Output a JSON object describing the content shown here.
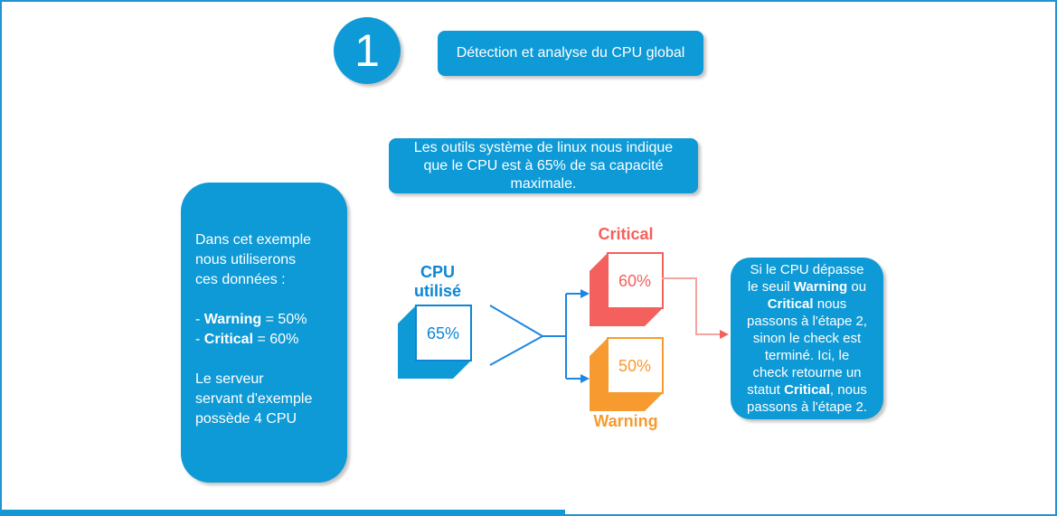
{
  "colors": {
    "blue": "#0e9ad6",
    "line-blue": "#1e87e0",
    "accent-blue": "#0c86d4",
    "critical": "#f4605d",
    "critical-light": "#f4a3a1",
    "warning": "#f79b30"
  },
  "step": {
    "number": "1",
    "title": "Détection et analyse du CPU global"
  },
  "info_box": {
    "lines": [
      "Les outils système de linux nous indique",
      "que le CPU est à 65% de sa capacité",
      "maximale."
    ]
  },
  "example_box": {
    "lines": [
      "Dans cet exemple",
      "nous utiliserons",
      "ces données :",
      "",
      "- **Warning** = 50%",
      "- **Critical** = 60%",
      "",
      "Le serveur",
      "servant d'exemple",
      "possède 4 CPU"
    ]
  },
  "cpu_node": {
    "label_lines": [
      "CPU",
      "utilisé"
    ],
    "value": "65%"
  },
  "thresholds": {
    "critical": {
      "label": "Critical",
      "value": "60%"
    },
    "warning": {
      "label": "Warning",
      "value": "50%"
    }
  },
  "result_box": {
    "lines": [
      "Si le CPU dépasse",
      "le seuil **Warning** ou",
      "**Critical** nous",
      "passons à l'étape 2,",
      "sinon le check est",
      "terminé. Ici, le",
      "check retourne un",
      "statut **Critical**, nous",
      "passons à l'étape 2."
    ]
  }
}
